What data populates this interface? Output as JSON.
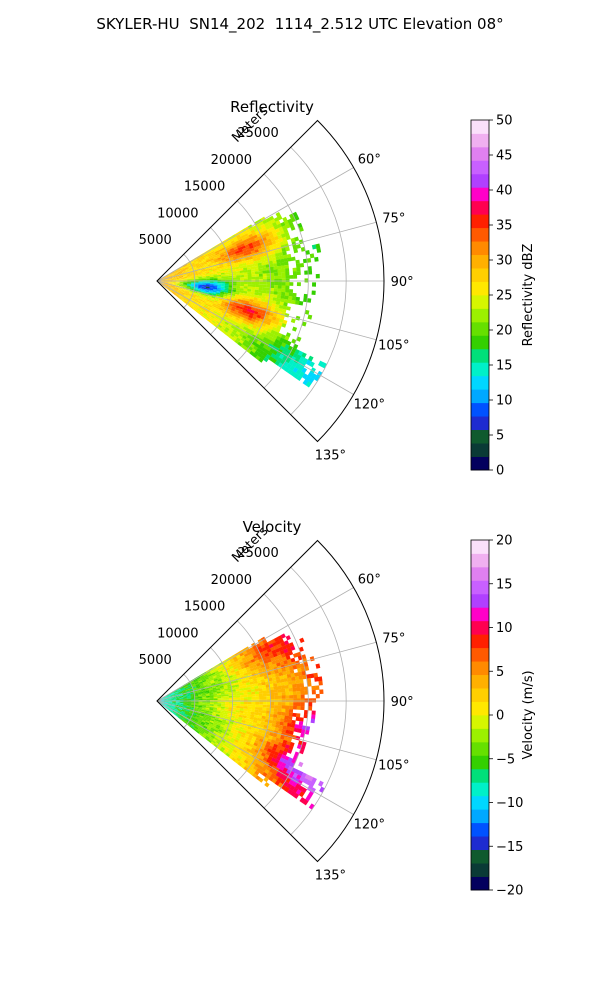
{
  "title": "SKYLER-HU  SN14_202  1114_2.512 UTC Elevation 08°",
  "chart_data": [
    {
      "type": "heatmap",
      "projection": "polar-sector",
      "title": "Reflectivity",
      "radial_label": "Meters",
      "radial_ticks": [
        5000,
        10000,
        15000,
        20000,
        25000
      ],
      "radial_range": [
        0,
        30000
      ],
      "azimuth_ticks": [
        "60°",
        "75°",
        "90°",
        "105°",
        "120°",
        "135°"
      ],
      "azimuth_range": [
        45,
        135
      ],
      "grid": true,
      "colorbar": {
        "label": "Reflectivity dBZ",
        "range": [
          0,
          50
        ],
        "ticks": [
          "0",
          "5",
          "10",
          "15",
          "20",
          "25",
          "30",
          "35",
          "40",
          "45",
          "50"
        ]
      },
      "features": [
        {
          "azimuth": 70,
          "range": 13000,
          "value": 37
        },
        {
          "azimuth": 97,
          "range": 6500,
          "value": 13
        },
        {
          "azimuth": 108,
          "range": 13000,
          "value": 38
        },
        {
          "azimuth": 120,
          "range": 20000,
          "value": 22
        }
      ],
      "colors": [
        "#03005e",
        "#0a3a36",
        "#0f5a2e",
        "#1e2bd0",
        "#0052ff",
        "#00a8ff",
        "#00d7ff",
        "#00f0c8",
        "#00e07a",
        "#34d000",
        "#66e000",
        "#9cf000",
        "#d6f600",
        "#ffe800",
        "#ffcf00",
        "#ffb000",
        "#ff8a00",
        "#ff5a00",
        "#ff2000",
        "#ff0050",
        "#ff00c8",
        "#b040ff",
        "#c860ff",
        "#e080f0",
        "#f0b0f0",
        "#fbe0fb"
      ]
    },
    {
      "type": "heatmap",
      "projection": "polar-sector",
      "title": "Velocity",
      "radial_label": "Meters",
      "radial_ticks": [
        5000,
        10000,
        15000,
        20000,
        25000
      ],
      "radial_range": [
        0,
        30000
      ],
      "azimuth_ticks": [
        "60°",
        "75°",
        "90°",
        "105°",
        "120°",
        "135°"
      ],
      "azimuth_range": [
        45,
        135
      ],
      "grid": true,
      "colorbar": {
        "label": "Velocity (m/s)",
        "range": [
          -20,
          20
        ],
        "ticks": [
          "−20",
          "−15",
          "−10",
          "−5",
          "0",
          "5",
          "10",
          "15",
          "20"
        ]
      },
      "features": [
        {
          "azimuth": 90,
          "range": 2000,
          "value": -8
        },
        {
          "azimuth": 70,
          "range": 18000,
          "value": 9
        },
        {
          "azimuth": 95,
          "range": 10000,
          "value": 1
        },
        {
          "azimuth": 115,
          "range": 20000,
          "value": 13
        }
      ],
      "colors": [
        "#03005e",
        "#0a3a36",
        "#0f5a2e",
        "#1e2bd0",
        "#0052ff",
        "#00a8ff",
        "#00d7ff",
        "#00f0c8",
        "#00e07a",
        "#34d000",
        "#66e000",
        "#9cf000",
        "#d6f600",
        "#ffe800",
        "#ffcf00",
        "#ffb000",
        "#ff8a00",
        "#ff5a00",
        "#ff2000",
        "#ff0050",
        "#ff00c8",
        "#b040ff",
        "#c860ff",
        "#e080f0",
        "#f0b0f0",
        "#fbe0fb"
      ]
    }
  ]
}
